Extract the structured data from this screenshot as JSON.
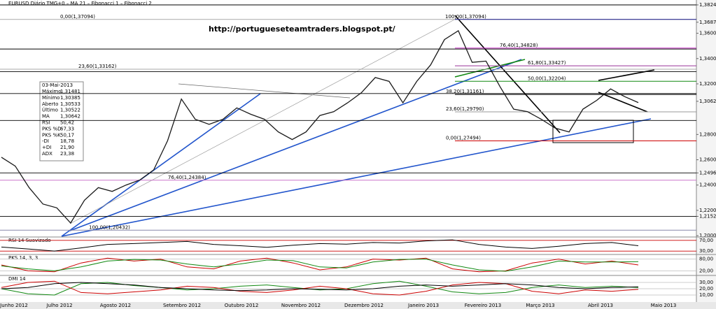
{
  "chart_data": {
    "type": "line",
    "title": "EURUSD Diário TMG+0 – MA 21 – Fibonacci 1 – Fibonacci 2",
    "annotation": "http://portugueseteamtraders.blogspot.pt/",
    "color": "#1a1a1a",
    "values": [
      1.262,
      1.255,
      1.238,
      1.225,
      1.222,
      1.21,
      1.228,
      1.238,
      1.235,
      1.24,
      1.244,
      1.252,
      1.275,
      1.308,
      1.292,
      1.288,
      1.292,
      1.301,
      1.296,
      1.292,
      1.282,
      1.276,
      1.282,
      1.295,
      1.298,
      1.305,
      1.313,
      1.325,
      1.322,
      1.305,
      1.322,
      1.335,
      1.355,
      1.362,
      1.337,
      1.338,
      1.318,
      1.3,
      1.298,
      1.292,
      1.285,
      1.282,
      1.3,
      1.307,
      1.316,
      1.31,
      1.3052
    ],
    "ylim": [
      1.1995,
      1.3863
    ],
    "yticks": [
      {
        "value": 1.38243,
        "label": "1,38243"
      },
      {
        "value": 1.36874,
        "label": "1,36874"
      },
      {
        "value": 1.36,
        "label": "1,36000"
      },
      {
        "value": 1.34,
        "label": "1,34000"
      },
      {
        "value": 1.32,
        "label": "1,32000"
      },
      {
        "value": 1.30622,
        "label": "1,30622"
      },
      {
        "value": 1.28,
        "label": "1,28000"
      },
      {
        "value": 1.26,
        "label": "1,26000"
      },
      {
        "value": 1.24961,
        "label": "1,24961"
      },
      {
        "value": 1.24,
        "label": "1,24000"
      },
      {
        "value": 1.22,
        "label": "1,22000"
      },
      {
        "value": 1.21526,
        "label": "1,21526"
      },
      {
        "value": 1.2,
        "label": "1,20000"
      }
    ],
    "levels": [
      1.38243,
      1.34754,
      1.32968,
      1.31236,
      1.29107,
      1.24961,
      1.21526
    ],
    "fibonacci_1": [
      {
        "value": 1.37094,
        "label": "0,00(1,37094)",
        "color": "#aaaaaa"
      },
      {
        "value": 1.33162,
        "label": "23,60(1,33162)",
        "color": "#aaaaaa"
      },
      {
        "value": 1.24384,
        "label": "76,40(1,24384)",
        "color": "#cc77cc"
      },
      {
        "value": 1.20432,
        "label": "100,00(1,20432)",
        "color": "#8888aa"
      }
    ],
    "fibonacci_2": [
      {
        "value": 1.37094,
        "label": "100,00(1,37094)",
        "color": "#1a1a8c"
      },
      {
        "value": 1.34828,
        "label": "76,40(1,34828)",
        "color": "#cc33cc"
      },
      {
        "value": 1.33427,
        "label": "61,80(1,33427)",
        "color": "#993399"
      },
      {
        "value": 1.32204,
        "label": "50,00(1,32204)",
        "color": "#118811"
      },
      {
        "value": 1.31161,
        "label": "38,20(1,31161)",
        "color": "#000000"
      },
      {
        "value": 1.2979,
        "label": "23,60(1,29790)",
        "color": "#999999"
      },
      {
        "value": 1.27494,
        "label": "0,00(1,27494)",
        "color": "#cc0000"
      }
    ],
    "info_box": {
      "date": "03-Mai-2013",
      "rows": [
        [
          "Máximo",
          "1,31481"
        ],
        [
          "Mínimo",
          "1,30385"
        ],
        [
          "Aberto",
          "1,30533"
        ],
        [
          "Último",
          "1,30522"
        ],
        [
          "MA",
          "1,30642"
        ],
        [
          "RSI",
          "50,42"
        ],
        [
          "PKS %D",
          "67,33"
        ],
        [
          "PKS %K",
          "50,17"
        ],
        [
          "-DI",
          "18,78"
        ],
        [
          "+DI",
          "21,90"
        ],
        [
          "ADX",
          "23,38"
        ]
      ]
    },
    "months": [
      "Junho 2012",
      "Julho 2012",
      "Agosto 2012",
      "Setembro 2012",
      "Outubro 2012",
      "Novembro 2012",
      "Dezembro 2012",
      "Janeiro 2013",
      "Fevereiro 2013",
      "Março 2013",
      "Abril 2013",
      "Maio 2013"
    ],
    "panels": [
      {
        "label": "RSI 14 Suavizado",
        "ylim": [
          20,
          80
        ],
        "yticks": [
          {
            "value": 70,
            "label": "70,00"
          },
          {
            "value": 30,
            "label": "30,00"
          }
        ],
        "series": [
          {
            "color": "#000000",
            "values": [
              45,
              38,
              30,
              42,
              55,
              58,
              62,
              66,
              55,
              50,
              44,
              52,
              58,
              56,
              62,
              60,
              68,
              72,
              55,
              45,
              40,
              48,
              58,
              62,
              50
            ]
          }
        ]
      },
      {
        "label": "PKS 14, 3, 3",
        "ylim": [
          0,
          100
        ],
        "yticks": [
          {
            "value": 80,
            "label": "80,00"
          },
          {
            "value": 20,
            "label": "20,00"
          }
        ],
        "series": [
          {
            "color": "#cc0000",
            "values": [
              50,
              20,
              15,
              60,
              85,
              70,
              80,
              40,
              30,
              70,
              85,
              60,
              25,
              40,
              80,
              75,
              85,
              30,
              15,
              20,
              60,
              80,
              55,
              70,
              50
            ]
          },
          {
            "color": "#118811",
            "values": [
              45,
              30,
              20,
              40,
              70,
              78,
              75,
              55,
              40,
              55,
              75,
              72,
              40,
              35,
              65,
              78,
              80,
              50,
              25,
              18,
              40,
              70,
              65,
              65,
              67
            ]
          }
        ]
      },
      {
        "label": "DMI 14",
        "ylim": [
          0,
          40
        ],
        "yticks": [
          {
            "value": 30,
            "label": "30,00"
          },
          {
            "value": 20,
            "label": "20,00"
          },
          {
            "value": 10,
            "label": "10,00"
          }
        ],
        "series": [
          {
            "color": "#118811",
            "values": [
              20,
              12,
              10,
              28,
              30,
              25,
              22,
              18,
              20,
              24,
              26,
              22,
              18,
              20,
              28,
              32,
              24,
              15,
              12,
              14,
              22,
              26,
              22,
              24,
              22
            ]
          },
          {
            "color": "#cc0000",
            "values": [
              22,
              30,
              32,
              14,
              12,
              15,
              18,
              24,
              22,
              16,
              14,
              18,
              24,
              20,
              12,
              10,
              16,
              26,
              30,
              28,
              16,
              12,
              18,
              16,
              19
            ]
          },
          {
            "color": "#000000",
            "values": [
              20,
              22,
              28,
              30,
              28,
              26,
              22,
              20,
              18,
              17,
              18,
              20,
              19,
              18,
              20,
              24,
              26,
              24,
              26,
              28,
              26,
              22,
              20,
              22,
              23
            ]
          }
        ]
      }
    ]
  }
}
